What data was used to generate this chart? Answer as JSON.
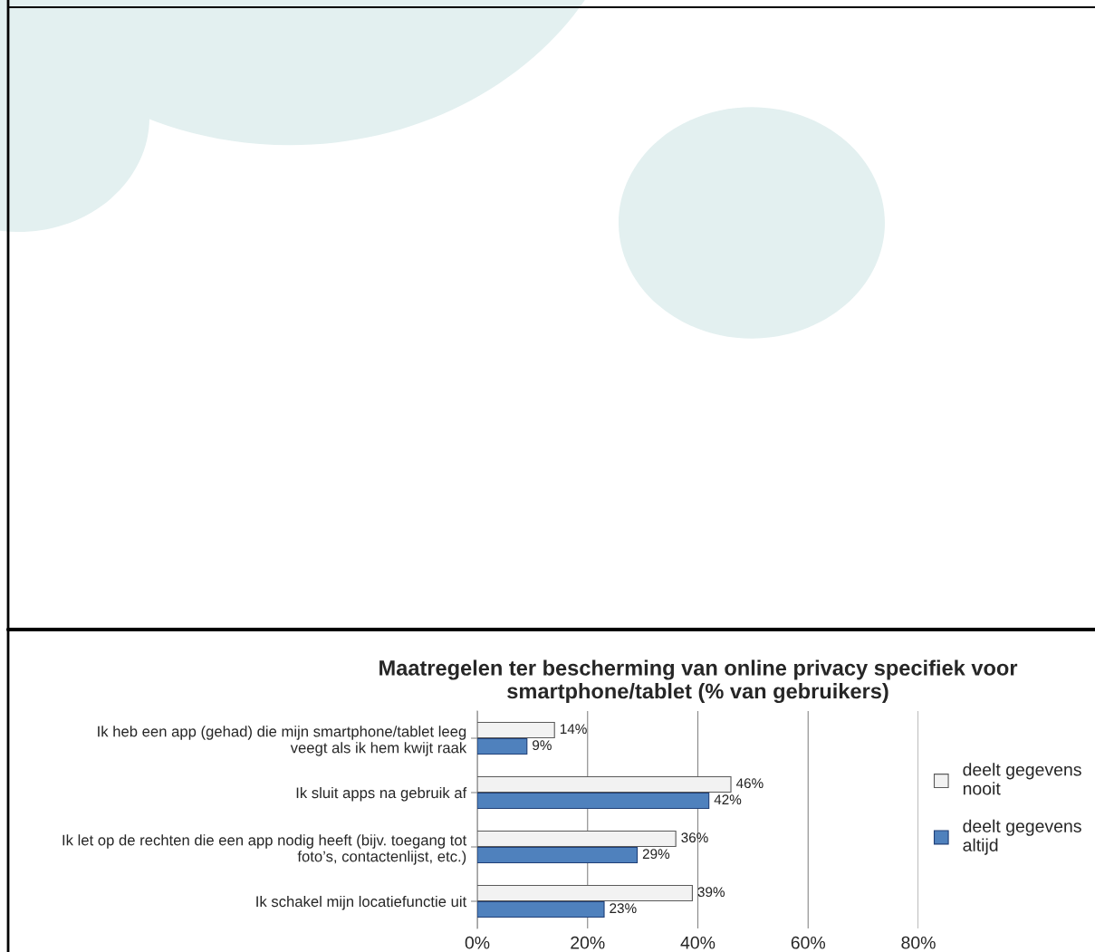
{
  "chart_data": {
    "type": "bar",
    "orientation": "horizontal",
    "title": "Maatregelen ter bescherming van online privacy specifiek voor\nsmartphone/tablet (% van gebruikers)",
    "categories": [
      "Ik heb een app (gehad) die mijn smartphone/tablet leeg\nveegt als ik hem kwijt raak",
      "Ik sluit apps na gebruik af",
      "Ik let op de rechten die een app nodig heeft (bijv. toegang tot\nfoto’s, contactenlijst, etc.)",
      "Ik schakel mijn locatiefunctie uit"
    ],
    "series": [
      {
        "name": "deelt gegevens\nnooit",
        "color": "#f2f2f2",
        "values": [
          14,
          46,
          36,
          39
        ],
        "value_labels": [
          "14%",
          "46%",
          "36%",
          "39%"
        ]
      },
      {
        "name": "deelt gegevens\naltijd",
        "color": "#4f81bd",
        "values": [
          9,
          42,
          29,
          23
        ],
        "value_labels": [
          "9%",
          "42%",
          "29%",
          "23%"
        ]
      }
    ],
    "xlim": [
      0,
      80
    ],
    "xticks": [
      {
        "value": 0,
        "label": "0%"
      },
      {
        "value": 20,
        "label": "20%"
      },
      {
        "value": 40,
        "label": "40%"
      },
      {
        "value": 60,
        "label": "60%"
      },
      {
        "value": 80,
        "label": "80%"
      }
    ],
    "grid": "x",
    "legend": "right"
  }
}
